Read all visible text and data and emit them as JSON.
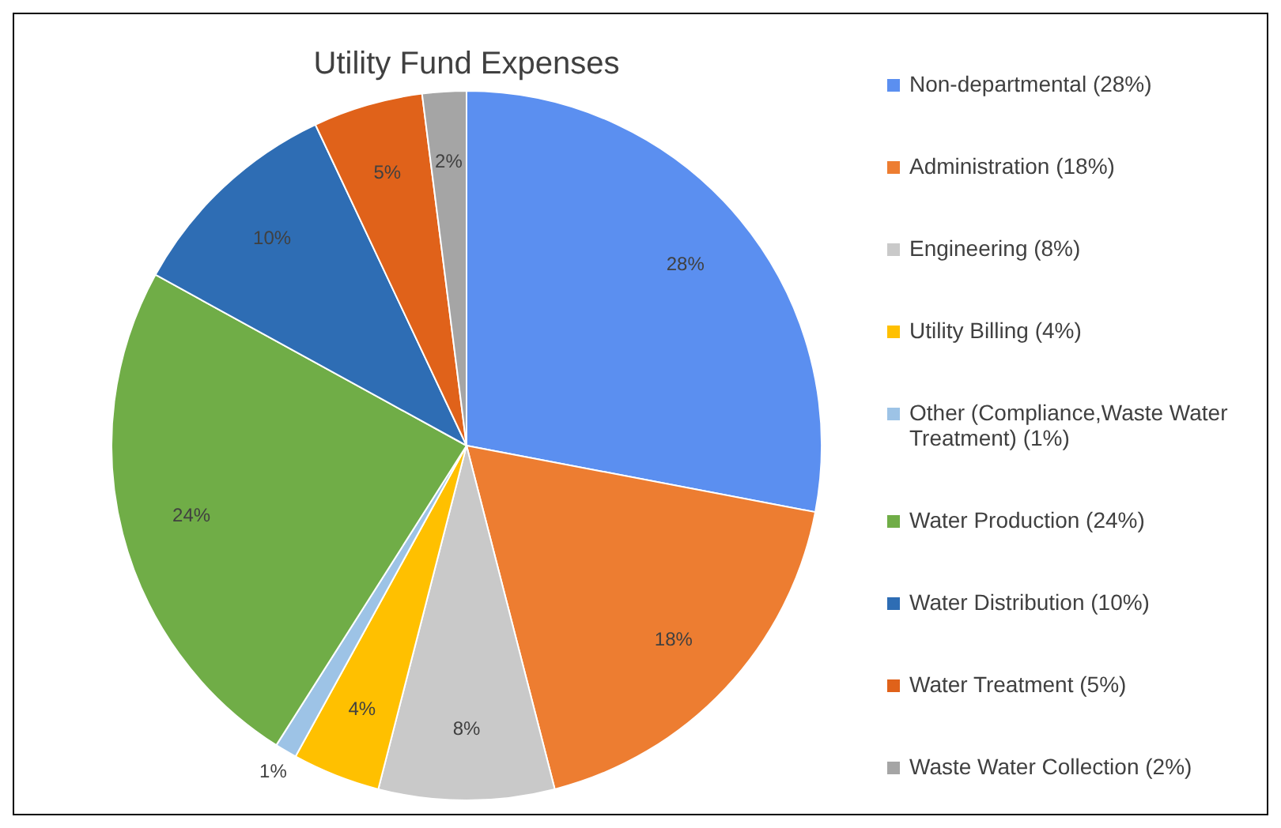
{
  "chart_data": {
    "type": "pie",
    "title": "Utility Fund Expenses",
    "categories": [
      "Non-departmental (28%)",
      "Administration (18%)",
      "Engineering (8%)",
      "Utility Billing (4%)",
      "Other (Compliance,Waste Water Treatment) (1%)",
      "Water Production (24%)",
      "Water Distribution (10%)",
      "Water Treatment (5%)",
      "Waste Water Collection (2%)"
    ],
    "values": [
      28,
      18,
      8,
      4,
      1,
      24,
      10,
      5,
      2
    ],
    "colors": [
      "#5b8ff0",
      "#ed7d31",
      "#c9c9c9",
      "#ffc000",
      "#9dc3e6",
      "#70ad47",
      "#2e6db4",
      "#e0621a",
      "#a5a5a5"
    ],
    "value_labels": [
      "28%",
      "18%",
      "8%",
      "4%",
      "1%",
      "24%",
      "10%",
      "5%",
      "2%"
    ],
    "legend": "right"
  }
}
